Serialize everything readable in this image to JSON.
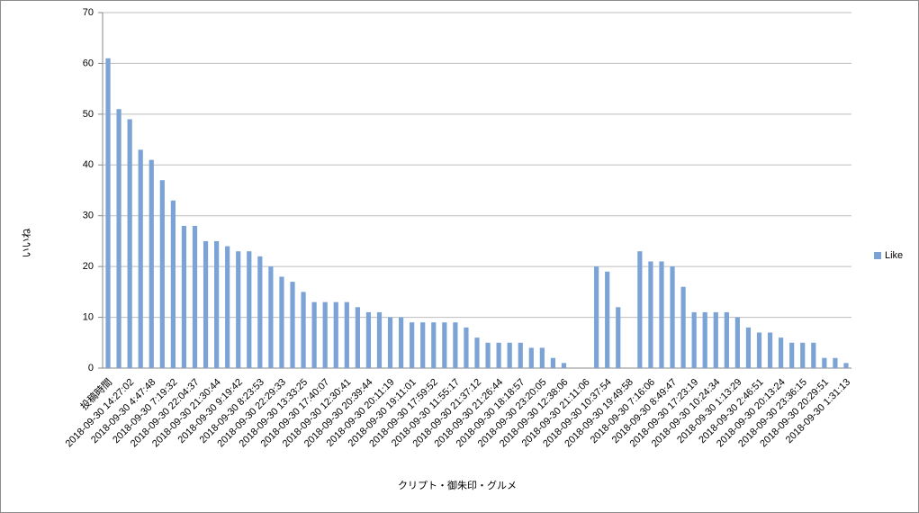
{
  "chart_data": {
    "type": "bar",
    "x_label": "クリプト・御朱印・グルメ",
    "y_label": "いいね",
    "categories": [
      "投稿時間",
      null,
      "2018-09-30 14:27:02",
      null,
      "2018-09-30 4:47:48",
      null,
      "2018-09-30 7:19:32",
      null,
      "2018-09-30 22:04:37",
      null,
      "2018-09-30 21:30:44",
      null,
      "2018-09-30 9:19:42",
      null,
      "2018-09-30 8:23:53",
      null,
      "2018-09-30 22:29:33",
      null,
      "2018-09-30 13:33:25",
      null,
      "2018-09-30 17:40:07",
      null,
      "2018-09-30 12:30:41",
      null,
      "2018-09-30 20:39:44",
      null,
      "2018-09-30 20:11:19",
      null,
      "2018-09-30 19:11:01",
      null,
      "2018-09-30 17:59:52",
      null,
      "2018-09-30 11:55:17",
      null,
      "2018-09-30 21:37:12",
      null,
      "2018-09-30 21:26:44",
      null,
      "2018-09-30 18:18:57",
      null,
      "2018-09-30 23:20:05",
      null,
      "2018-09-30 12:38:06",
      null,
      "2018-09-30 21:11:06",
      null,
      "2018-09-30 10:37:54",
      null,
      "2018-09-30 19:49:58",
      null,
      "2018-09-30 7:16:06",
      null,
      "2018-09-30 8:49:47",
      null,
      "2018-09-30 17:23:19",
      null,
      "2018-09-30 10:24:34",
      null,
      "2018-09-30 1:13:29",
      null,
      "2018-09-30 2:46:51",
      null,
      "2018-09-30 20:13:24",
      null,
      "2018-09-30 23:36:15",
      null,
      "2018-09-30 20:29:51",
      null,
      "2018-09-30 1:31:13"
    ],
    "series": [
      {
        "name": "Like",
        "color": "#7ba3d6",
        "values": [
          61,
          51,
          49,
          43,
          41,
          37,
          33,
          28,
          28,
          25,
          25,
          24,
          23,
          23,
          22,
          20,
          18,
          17,
          15,
          13,
          13,
          13,
          13,
          12,
          11,
          11,
          10,
          10,
          9,
          9,
          9,
          9,
          9,
          8,
          6,
          5,
          5,
          5,
          5,
          4,
          4,
          2,
          1,
          0,
          0,
          20,
          19,
          12,
          0,
          23,
          21,
          21,
          20,
          16,
          11,
          11,
          11,
          11,
          10,
          8,
          7,
          7,
          6,
          5,
          5,
          5,
          2,
          2,
          1
        ]
      }
    ],
    "ylim": [
      0,
      70
    ],
    "yticks": [
      0,
      10,
      20,
      30,
      40,
      50,
      60,
      70
    ],
    "grid": true,
    "legend": "right"
  }
}
